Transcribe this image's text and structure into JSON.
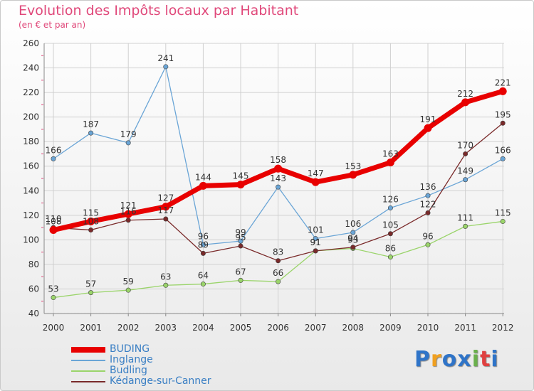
{
  "chart_data": {
    "type": "line",
    "title": "Evolution des Impôts locaux par Habitant",
    "subtitle": "(en € et par an)",
    "categories": [
      "2000",
      "2001",
      "2002",
      "2003",
      "2004",
      "2005",
      "2006",
      "2007",
      "2008",
      "2009",
      "2010",
      "2011",
      "2012"
    ],
    "ylim": [
      40,
      260
    ],
    "yticks": [
      40,
      60,
      80,
      100,
      120,
      140,
      160,
      180,
      200,
      220,
      240,
      260
    ],
    "grid": true,
    "legend_position": "bottom-left",
    "series": [
      {
        "name": "BUDING",
        "color": "#e80000",
        "values": [
          108,
          115,
          121,
          127,
          144,
          145,
          158,
          147,
          153,
          163,
          191,
          212,
          221
        ]
      },
      {
        "name": "Inglange",
        "color": "#6aa5d6",
        "values": [
          166,
          187,
          179,
          241,
          96,
          99,
          143,
          101,
          106,
          126,
          136,
          149,
          166
        ]
      },
      {
        "name": "Budling",
        "color": "#9ad46a",
        "values": [
          53,
          57,
          59,
          63,
          64,
          67,
          66,
          91,
          93,
          86,
          96,
          111,
          115
        ]
      },
      {
        "name": "Kédange-sur-Canner",
        "color": "#7a2a2a",
        "values": [
          110,
          108,
          116,
          117,
          89,
          95,
          83,
          91,
          94,
          105,
          122,
          170,
          195
        ]
      }
    ]
  },
  "logo": {
    "text": "Proxiti",
    "letters": [
      "P",
      "r",
      "o",
      "x",
      "i",
      "t",
      "i"
    ],
    "colors": [
      "#2f74c8",
      "#f0a020",
      "#2f74c8",
      "#2f74c8",
      "#6ab04c",
      "#e04040",
      "#2f74c8"
    ]
  }
}
